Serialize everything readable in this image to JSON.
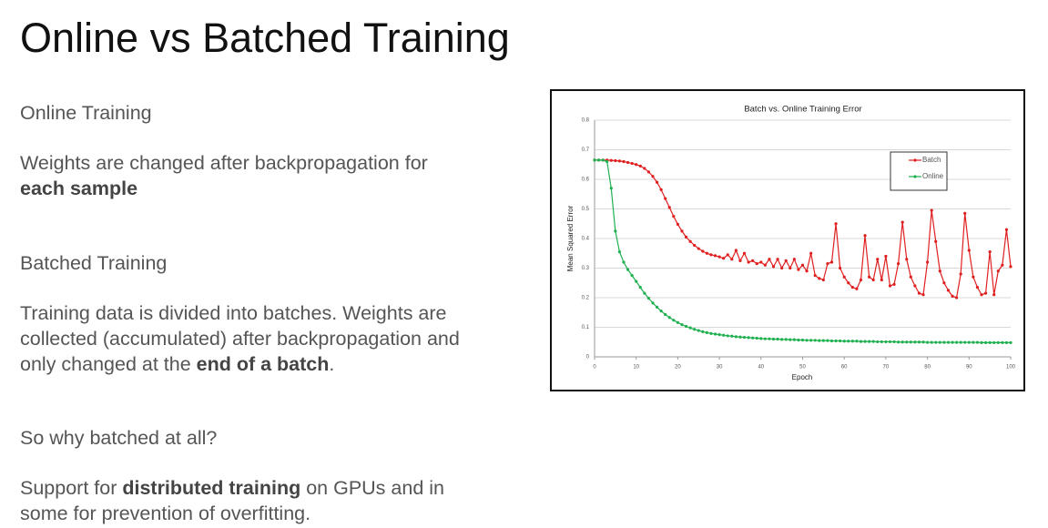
{
  "title": "Online vs Batched Training",
  "paragraphs": [
    {
      "runs": [
        {
          "text": "Online Training",
          "bold": false
        }
      ]
    },
    {
      "runs": [
        {
          "text": "Weights are changed after backpropagation for ",
          "bold": false
        },
        {
          "text": "each sample",
          "bold": true
        }
      ]
    },
    {
      "runs": [
        {
          "text": "Batched Training",
          "bold": false
        }
      ]
    },
    {
      "runs": [
        {
          "text": "Training data is divided into batches. Weights are collected (accumulated) after backpropagation and only changed at the ",
          "bold": false
        },
        {
          "text": "end of a batch",
          "bold": true
        },
        {
          "text": ".",
          "bold": false
        }
      ]
    },
    {
      "runs": [
        {
          "text": "So why batched at all?",
          "bold": false
        }
      ]
    },
    {
      "runs": [
        {
          "text": "Support for ",
          "bold": false
        },
        {
          "text": "distributed training",
          "bold": true
        },
        {
          "text": " on GPUs and in some for prevention of overfitting.",
          "bold": false
        }
      ]
    }
  ],
  "chart_data": {
    "type": "line",
    "title": "Batch vs. Online Training Error",
    "x_label": "Epoch",
    "y_label": "Mean Squared Error",
    "x": [
      0,
      1,
      2,
      3,
      4,
      5,
      6,
      7,
      8,
      9,
      10,
      11,
      12,
      13,
      14,
      15,
      16,
      17,
      18,
      19,
      20,
      21,
      22,
      23,
      24,
      25,
      26,
      27,
      28,
      29,
      30,
      31,
      32,
      33,
      34,
      35,
      36,
      37,
      38,
      39,
      40,
      41,
      42,
      43,
      44,
      45,
      46,
      47,
      48,
      49,
      50,
      51,
      52,
      53,
      54,
      55,
      56,
      57,
      58,
      59,
      60,
      61,
      62,
      63,
      64,
      65,
      66,
      67,
      68,
      69,
      70,
      71,
      72,
      73,
      74,
      75,
      76,
      77,
      78,
      79,
      80,
      81,
      82,
      83,
      84,
      85,
      86,
      87,
      88,
      89,
      90,
      91,
      92,
      93,
      94,
      95,
      96,
      97,
      98,
      99,
      100
    ],
    "series": [
      {
        "name": "Batch",
        "color": "#e02020",
        "values": [
          0.665,
          0.665,
          0.665,
          0.665,
          0.664,
          0.663,
          0.662,
          0.66,
          0.657,
          0.654,
          0.65,
          0.645,
          0.637,
          0.625,
          0.61,
          0.59,
          0.565,
          0.535,
          0.505,
          0.475,
          0.448,
          0.425,
          0.405,
          0.39,
          0.377,
          0.366,
          0.357,
          0.35,
          0.345,
          0.342,
          0.338,
          0.333,
          0.345,
          0.33,
          0.36,
          0.325,
          0.35,
          0.32,
          0.325,
          0.315,
          0.32,
          0.31,
          0.33,
          0.305,
          0.33,
          0.3,
          0.325,
          0.3,
          0.33,
          0.295,
          0.31,
          0.29,
          0.35,
          0.275,
          0.265,
          0.26,
          0.315,
          0.32,
          0.45,
          0.3,
          0.27,
          0.25,
          0.235,
          0.23,
          0.26,
          0.41,
          0.27,
          0.26,
          0.33,
          0.26,
          0.34,
          0.24,
          0.245,
          0.315,
          0.455,
          0.33,
          0.27,
          0.24,
          0.215,
          0.21,
          0.32,
          0.495,
          0.39,
          0.29,
          0.25,
          0.225,
          0.205,
          0.2,
          0.28,
          0.485,
          0.36,
          0.27,
          0.235,
          0.21,
          0.215,
          0.355,
          0.21,
          0.29,
          0.31,
          0.43,
          0.305
        ]
      },
      {
        "name": "Online",
        "color": "#20b050",
        "values": [
          0.665,
          0.665,
          0.665,
          0.66,
          0.57,
          0.425,
          0.355,
          0.32,
          0.295,
          0.275,
          0.255,
          0.235,
          0.215,
          0.198,
          0.182,
          0.168,
          0.155,
          0.143,
          0.133,
          0.124,
          0.116,
          0.109,
          0.103,
          0.098,
          0.093,
          0.089,
          0.085,
          0.082,
          0.079,
          0.077,
          0.075,
          0.073,
          0.071,
          0.07,
          0.068,
          0.067,
          0.066,
          0.065,
          0.064,
          0.063,
          0.062,
          0.061,
          0.061,
          0.06,
          0.06,
          0.059,
          0.059,
          0.058,
          0.058,
          0.057,
          0.057,
          0.056,
          0.056,
          0.056,
          0.055,
          0.055,
          0.055,
          0.054,
          0.054,
          0.054,
          0.053,
          0.053,
          0.053,
          0.053,
          0.052,
          0.052,
          0.052,
          0.052,
          0.051,
          0.051,
          0.051,
          0.051,
          0.051,
          0.05,
          0.05,
          0.05,
          0.05,
          0.05,
          0.05,
          0.05,
          0.049,
          0.049,
          0.049,
          0.049,
          0.049,
          0.049,
          0.049,
          0.049,
          0.049,
          0.049,
          0.049,
          0.049,
          0.049,
          0.048,
          0.048,
          0.048,
          0.048,
          0.048,
          0.048,
          0.048,
          0.048
        ]
      }
    ],
    "xlim": [
      0,
      100
    ],
    "xticks": [
      0,
      10,
      20,
      30,
      40,
      50,
      60,
      70,
      80,
      90,
      100
    ],
    "ylim": [
      0,
      0.8
    ],
    "yticks": [
      0,
      0.1,
      0.2,
      0.3,
      0.4,
      0.5,
      0.6,
      0.7,
      0.8
    ],
    "grid": true,
    "legend": "upper right"
  }
}
